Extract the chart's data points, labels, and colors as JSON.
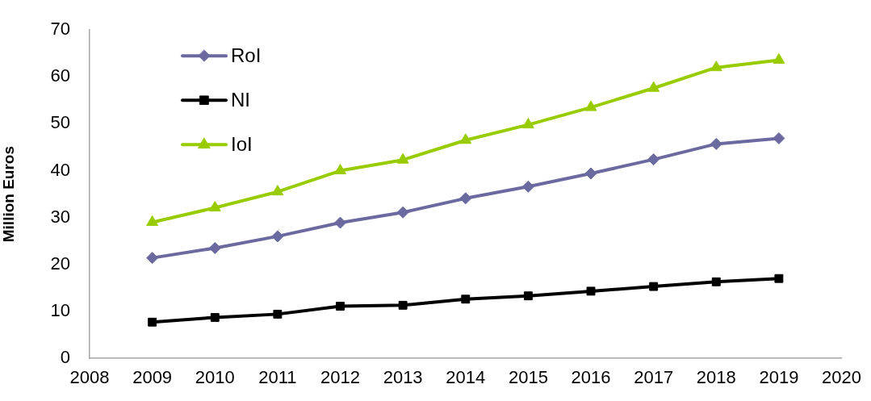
{
  "chart_data": {
    "type": "line",
    "ylabel": "Million Euros",
    "legend": "top left",
    "line_style": "solid",
    "xlim": [
      2008,
      2020
    ],
    "xticks": [
      2008,
      2009,
      2010,
      2011,
      2012,
      2013,
      2014,
      2015,
      2016,
      2017,
      2018,
      2019,
      2020
    ],
    "ylim": [
      0,
      70
    ],
    "yticks": [
      0,
      10,
      20,
      30,
      40,
      50,
      60,
      70
    ],
    "x": [
      2009,
      2010,
      2011,
      2012,
      2013,
      2014,
      2015,
      2016,
      2017,
      2018,
      2019
    ],
    "series": [
      {
        "name": "RoI",
        "color": "#6a6aa0",
        "marker": "diamond",
        "values": [
          21.4,
          23.5,
          26.0,
          28.9,
          31.1,
          34.1,
          36.6,
          39.4,
          42.4,
          45.7,
          46.9
        ]
      },
      {
        "name": "NI",
        "color": "#000000",
        "marker": "square",
        "values": [
          7.7,
          8.7,
          9.4,
          11.1,
          11.3,
          12.6,
          13.3,
          14.3,
          15.3,
          16.3,
          17.0
        ]
      },
      {
        "name": "IoI",
        "color": "#99cc00",
        "marker": "triangle",
        "values": [
          29.0,
          32.1,
          35.5,
          40.0,
          42.3,
          46.5,
          49.8,
          53.5,
          57.6,
          62.0,
          63.6
        ]
      }
    ]
  }
}
